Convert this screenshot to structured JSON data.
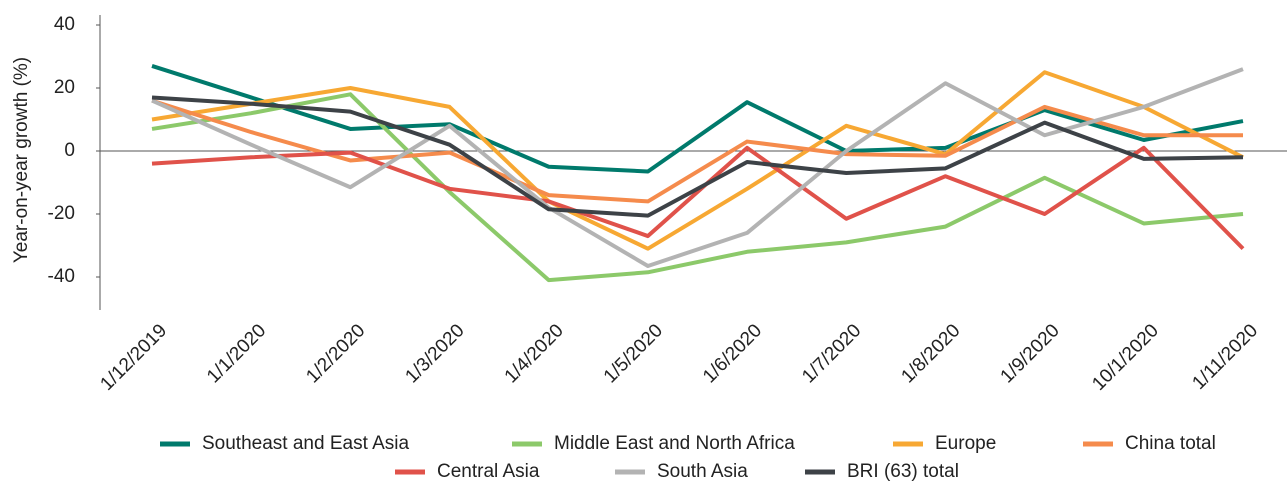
{
  "chart_data": {
    "type": "line",
    "y_label": "Year-on-year growth (%)",
    "categories": [
      "1/12/2019",
      "1/1/2020",
      "1/2/2020",
      "1/3/2020",
      "1/4/2020",
      "1/5/2020",
      "1/6/2020",
      "1/7/2020",
      "1/8/2020",
      "1/9/2020",
      "10/1/2020",
      "1/11/2020"
    ],
    "ylim": [
      -50,
      40
    ],
    "yticks": [
      40,
      20,
      0,
      -20,
      -40
    ],
    "series": [
      {
        "name": "Southeast and East Asia",
        "color": "#007a6c",
        "values": [
          27,
          17,
          7,
          8.5,
          -5,
          -6.5,
          15.5,
          0,
          1,
          13,
          3.5,
          9.5
        ]
      },
      {
        "name": "Middle East and North Africa",
        "color": "#8cc96a",
        "values": [
          7,
          12,
          18,
          -13,
          -41,
          -38.5,
          -32,
          -29,
          -24,
          -8.5,
          -23,
          -20
        ]
      },
      {
        "name": "Europe",
        "color": "#f7a833",
        "values": [
          10,
          15,
          20,
          14,
          -16,
          -31,
          -12,
          8,
          -1,
          25,
          14,
          -2
        ]
      },
      {
        "name": "China total",
        "color": "#f58b4c",
        "values": [
          16,
          6,
          -3,
          -0.5,
          -14,
          -16,
          3,
          -1,
          -1.5,
          14,
          5,
          5
        ]
      },
      {
        "name": "Central Asia",
        "color": "#e0524a",
        "values": [
          -4,
          -2,
          -0.5,
          -12,
          -16,
          -27,
          1,
          -21.5,
          -8,
          -20,
          1,
          -31
        ]
      },
      {
        "name": "South Asia",
        "color": "#b3b3b3",
        "values": [
          16,
          2,
          -11.5,
          8,
          -18,
          -36.5,
          -26,
          0,
          21.5,
          5,
          14,
          26
        ]
      },
      {
        "name": "BRI (63) total",
        "color": "#3d4247",
        "values": [
          17,
          15,
          12.5,
          2,
          -18.5,
          -20.5,
          -3.5,
          -7,
          -5.5,
          9,
          -2.5,
          -2
        ]
      }
    ]
  }
}
